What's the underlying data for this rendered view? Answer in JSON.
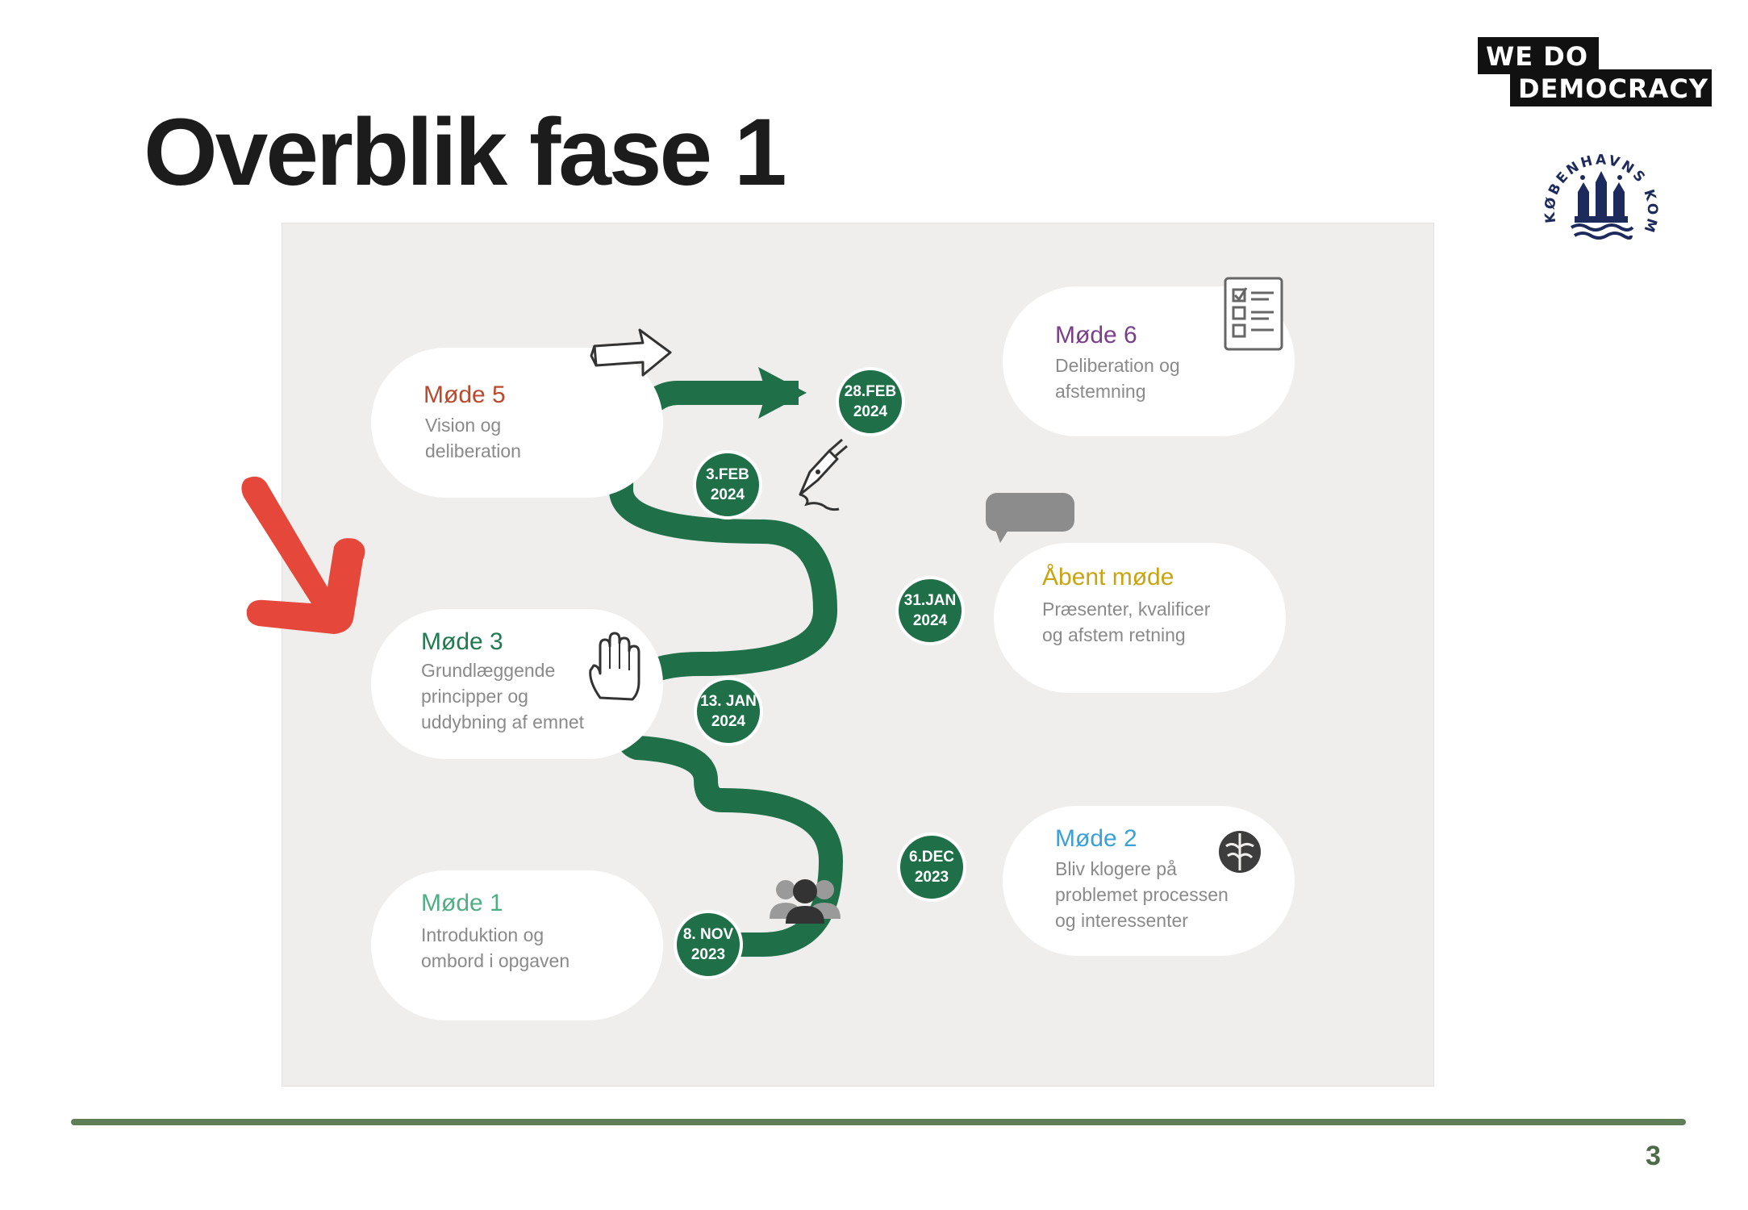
{
  "title": "Overblik fase 1",
  "logos": {
    "wdd_line1": "WE DO",
    "wdd_line2": "DEMOCRACY",
    "seal_text": "KØBENHAVNS KOMMUNE"
  },
  "cards": {
    "mode5": {
      "title": "Møde 5",
      "desc1": "Vision og",
      "desc2": "deliberation",
      "color": "#b84a2e"
    },
    "mode6": {
      "title": "Møde 6",
      "desc1": "Deliberation og",
      "desc2": "afstemning",
      "color": "#7a3f8a"
    },
    "abent": {
      "title": "Åbent møde",
      "desc1": "Præsenter, kvalificer",
      "desc2": "og afstem retning",
      "color": "#c9a411"
    },
    "mode3": {
      "title": "Møde 3",
      "desc1": "Grundlæggende",
      "desc2": "principper og",
      "desc3": "uddybning af emnet",
      "color": "#1f7a4f"
    },
    "mode2": {
      "title": "Møde 2",
      "desc1": "Bliv klogere på",
      "desc2": "problemet processen",
      "desc3": "og interessenter",
      "color": "#3aa0d8"
    },
    "mode1": {
      "title": "Møde 1",
      "desc1": "Introduktion og",
      "desc2": "ombord i opgaven",
      "color": "#4fae84"
    }
  },
  "timeline": {
    "nov": {
      "l1": "8. NOV",
      "l2": "2023"
    },
    "dec": {
      "l1": "6.DEC",
      "l2": "2023"
    },
    "jan13": {
      "l1": "13. JAN",
      "l2": "2024"
    },
    "jan31": {
      "l1": "31.JAN",
      "l2": "2024"
    },
    "feb3": {
      "l1": "3.FEB",
      "l2": "2024"
    },
    "feb28": {
      "l1": "28.FEB",
      "l2": "2024"
    }
  },
  "colors": {
    "path": "#1f7048",
    "panel": "#efeeec",
    "red_arrow": "#e5483a",
    "rule": "#5e7e58"
  },
  "page_number": "3"
}
